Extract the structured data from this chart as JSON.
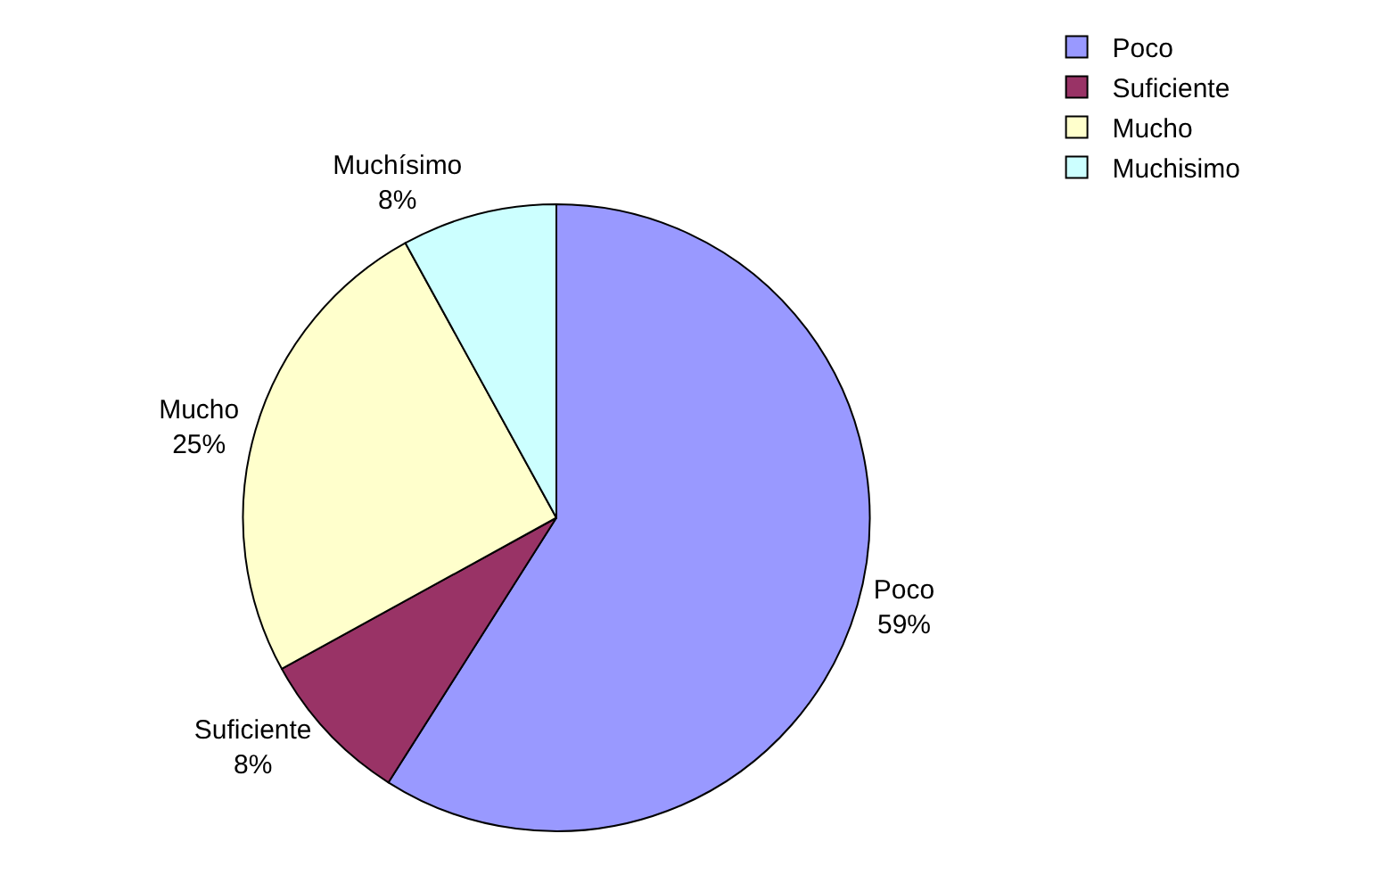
{
  "chart_data": {
    "type": "pie",
    "categories": [
      "Poco",
      "Suficiente",
      "Mucho",
      "Muchisimo"
    ],
    "values": [
      59,
      8,
      25,
      8
    ],
    "colors": [
      "#9999ff",
      "#993366",
      "#ffffcc",
      "#ccffff"
    ],
    "value_labels": [
      "Poco\n59%",
      "Suficiente\n8%",
      "Mucho\n25%",
      "Muchísimo\n8%"
    ],
    "legend": "top right"
  }
}
